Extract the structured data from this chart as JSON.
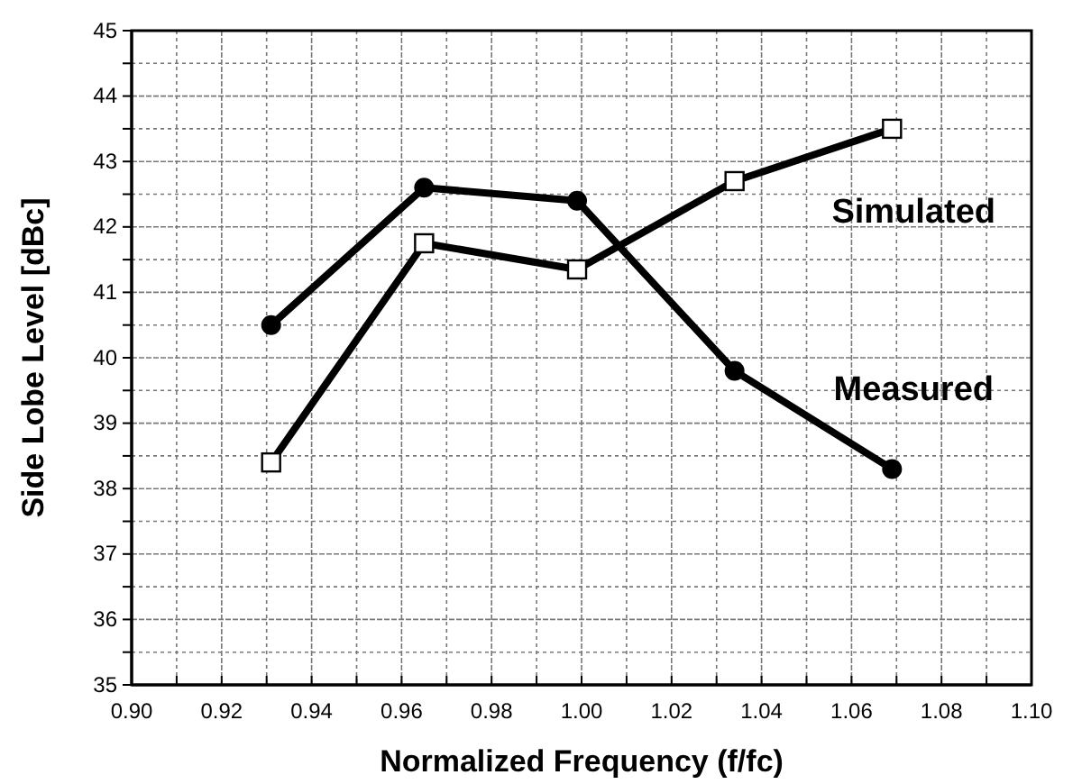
{
  "chart_data": {
    "type": "line",
    "xlabel": "Normalized Frequency (f/fc)",
    "ylabel": "Side Lobe Level [dBc]",
    "xlim": [
      0.9,
      1.1
    ],
    "ylim": [
      35,
      45
    ],
    "xticks": [
      {
        "value": 0.9,
        "label": "0.90"
      },
      {
        "value": 0.91,
        "label": null
      },
      {
        "value": 0.92,
        "label": "0.92"
      },
      {
        "value": 0.93,
        "label": null
      },
      {
        "value": 0.94,
        "label": "0.94"
      },
      {
        "value": 0.95,
        "label": null
      },
      {
        "value": 0.96,
        "label": "0.96"
      },
      {
        "value": 0.97,
        "label": null
      },
      {
        "value": 0.98,
        "label": "0.98"
      },
      {
        "value": 0.99,
        "label": null
      },
      {
        "value": 1.0,
        "label": "1.00"
      },
      {
        "value": 1.01,
        "label": null
      },
      {
        "value": 1.02,
        "label": "1.02"
      },
      {
        "value": 1.03,
        "label": null
      },
      {
        "value": 1.04,
        "label": "1.04"
      },
      {
        "value": 1.05,
        "label": null
      },
      {
        "value": 1.06,
        "label": "1.06"
      },
      {
        "value": 1.07,
        "label": null
      },
      {
        "value": 1.08,
        "label": "1.08"
      },
      {
        "value": 1.09,
        "label": null
      },
      {
        "value": 1.1,
        "label": "1.10"
      }
    ],
    "yticks": [
      35,
      {
        "value": 35.5,
        "label": null
      },
      36,
      {
        "value": 36.5,
        "label": null
      },
      37,
      {
        "value": 37.5,
        "label": null
      },
      38,
      {
        "value": 38.5,
        "label": null
      },
      39,
      {
        "value": 39.5,
        "label": null
      },
      40,
      {
        "value": 40.5,
        "label": null
      },
      41,
      {
        "value": 41.5,
        "label": null
      },
      42,
      {
        "value": 42.5,
        "label": null
      },
      43,
      {
        "value": 43.5,
        "label": null
      },
      44,
      {
        "value": 44.5,
        "label": null
      },
      45
    ],
    "grid": true,
    "line_style": "solid",
    "series": [
      {
        "name": "Measured",
        "color": "#000000",
        "marker": "circle",
        "x": [
          0.931,
          0.965,
          0.999,
          1.034,
          1.069
        ],
        "values": [
          40.5,
          42.6,
          42.4,
          39.8,
          38.3
        ]
      },
      {
        "name": "Simulated",
        "color": "#000000",
        "marker": "square",
        "x": [
          0.931,
          0.965,
          0.999,
          1.034,
          1.069
        ],
        "values": [
          38.4,
          41.75,
          41.35,
          42.7,
          43.5
        ]
      }
    ]
  }
}
